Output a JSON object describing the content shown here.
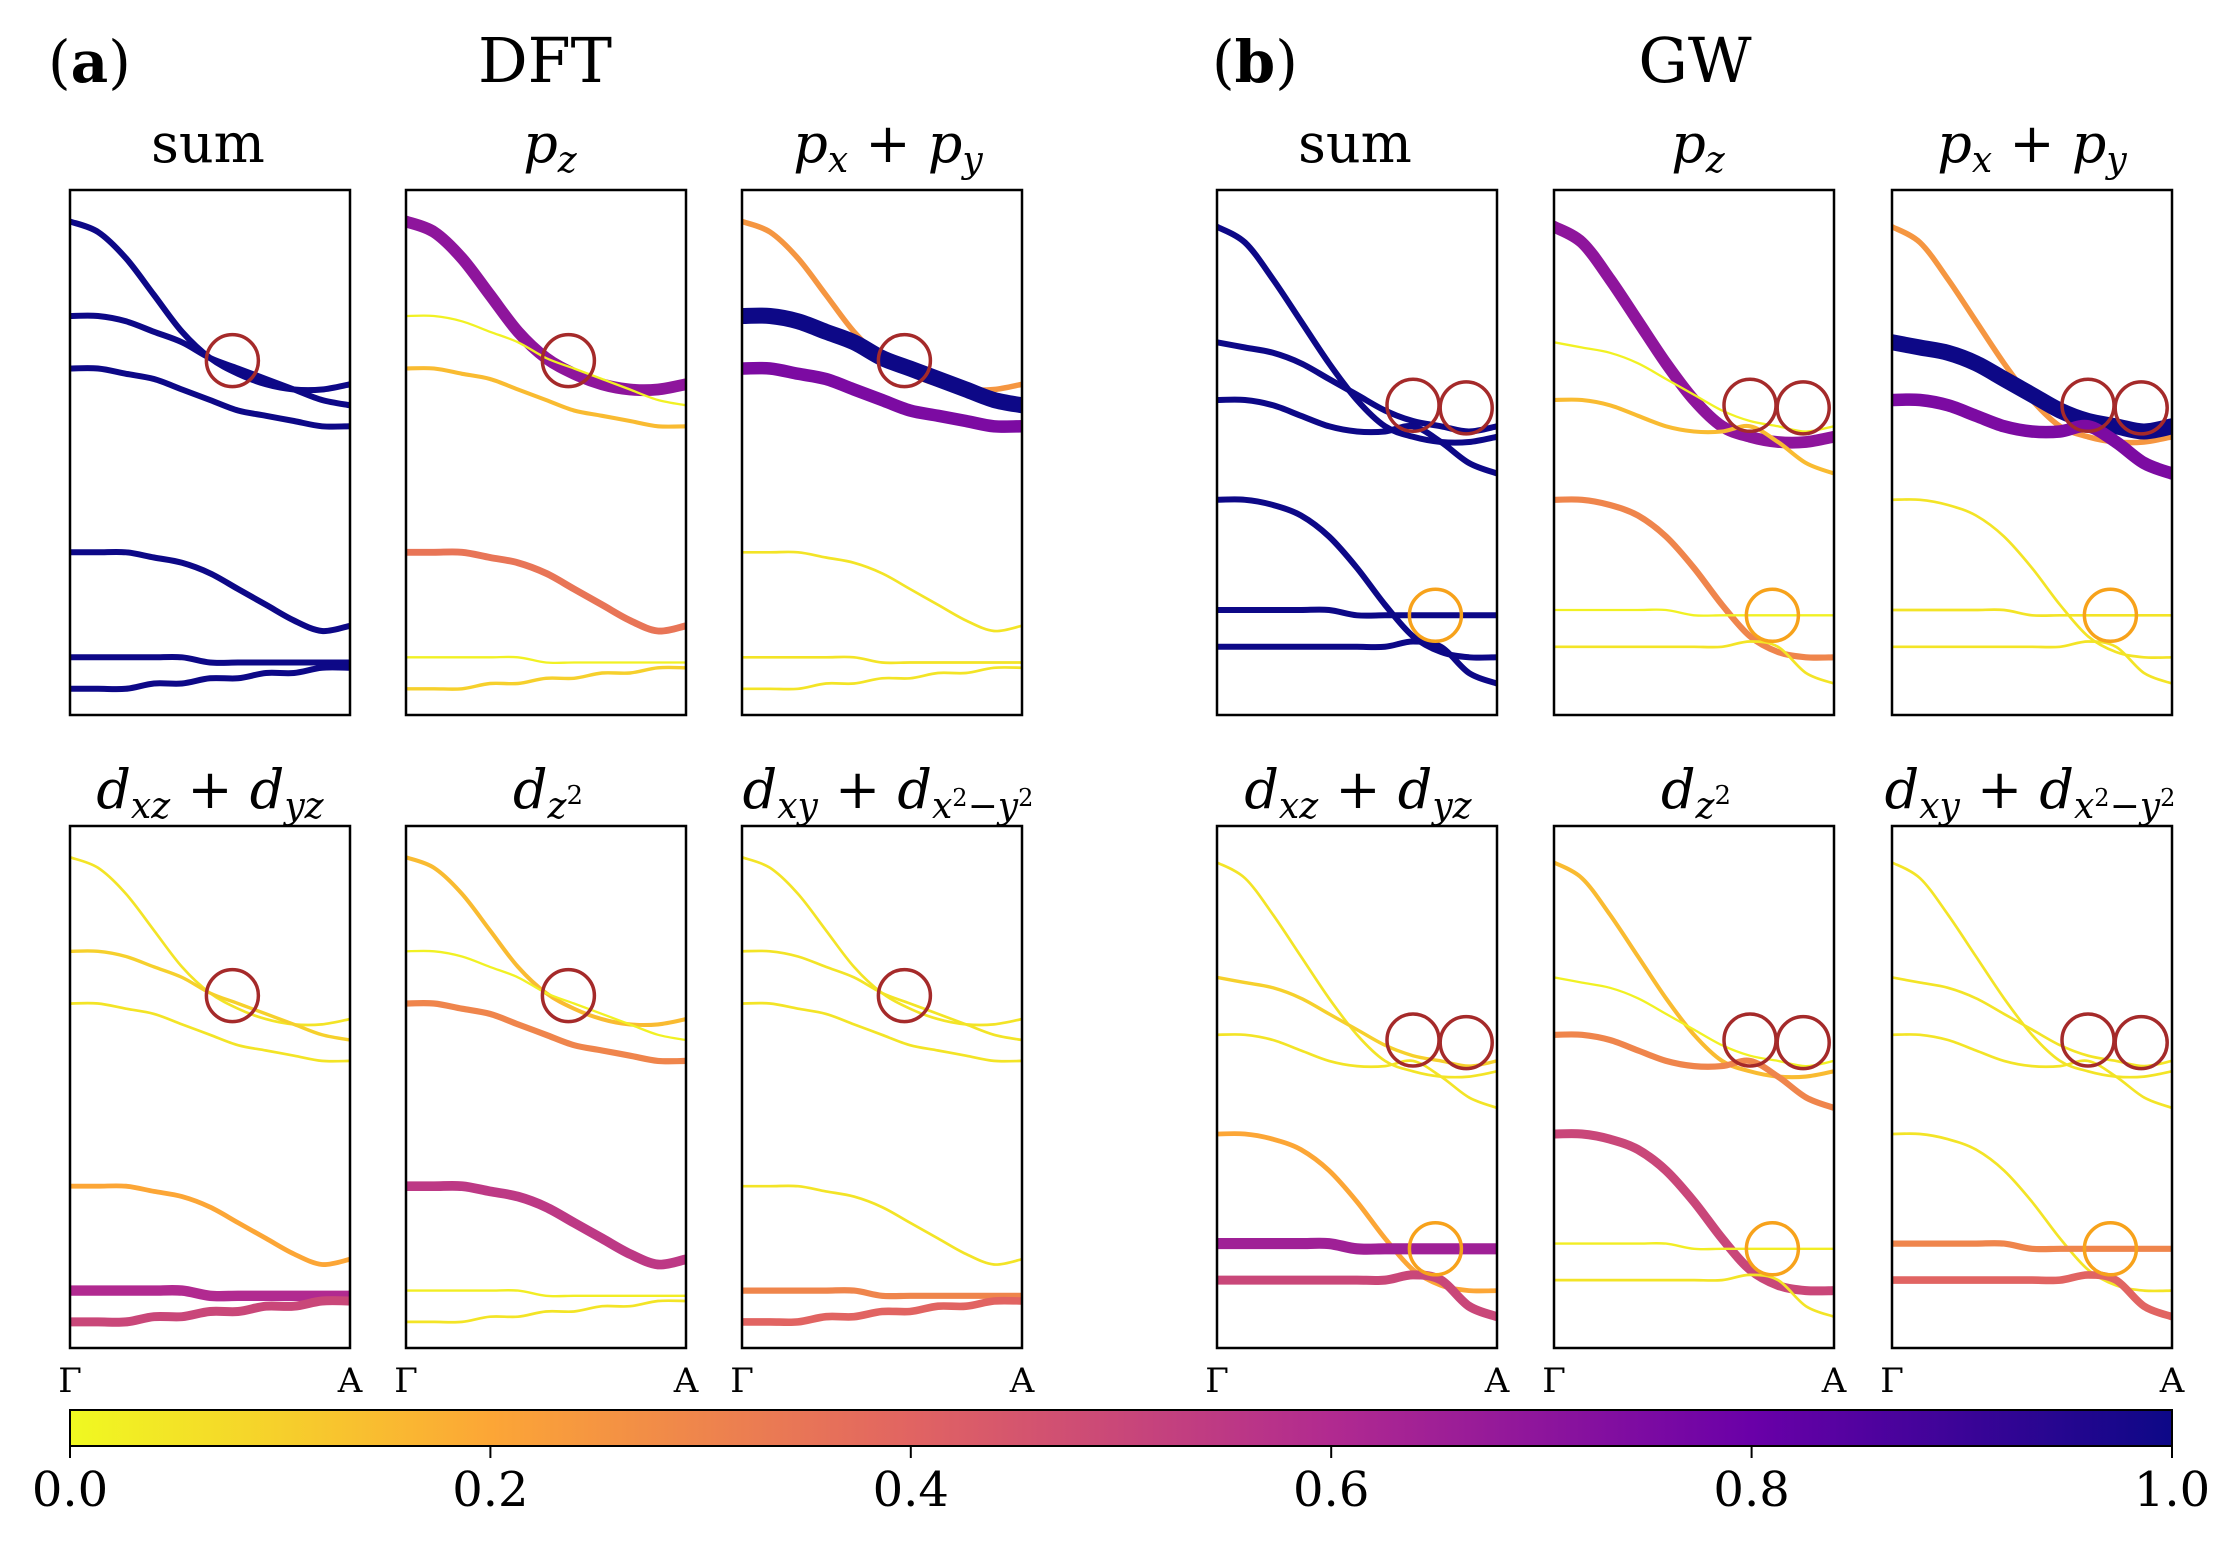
{
  "figure": {
    "panel_a": {
      "paren_open": "(",
      "letter": "a",
      "paren_close": ")",
      "title": "DFT"
    },
    "panel_b": {
      "paren_open": "(",
      "letter": "b",
      "paren_close": ")",
      "title": "GW"
    }
  },
  "subplot_titles": {
    "sum": "sum",
    "pz": {
      "base": "p",
      "sub": "z"
    },
    "pxpy": {
      "b1": "p",
      "s1": "x",
      "op": " + ",
      "b2": "p",
      "s2": "y"
    },
    "dxzdyz": {
      "b1": "d",
      "s1": "xz",
      "op": " + ",
      "b2": "d",
      "s2": "yz"
    },
    "dz2": {
      "base": "d",
      "sub": "z",
      "sup": "2"
    },
    "dxydx2y2": {
      "b1": "d",
      "s1": "xy",
      "op": " + ",
      "b2": "d",
      "s2a": "x",
      "s2sup": "2",
      "s2b": "−y",
      "s2sup2": "2"
    }
  },
  "x_ticks": [
    "Γ",
    "A"
  ],
  "colorbar": {
    "ticks": [
      "0.0",
      "0.2",
      "0.4",
      "0.6",
      "0.8",
      "1.0"
    ],
    "colors": [
      "#f0f921",
      "#fca636",
      "#e16462",
      "#b12a90",
      "#6a00a8",
      "#0d0887"
    ]
  },
  "chart_data": {
    "type": "line",
    "description": "Orbital-projected band structures along Gamma-A; weight 0..1 shown as color (plasma) and line width",
    "x": [
      0,
      0.1,
      0.2,
      0.3,
      0.4,
      0.5,
      0.6,
      0.7,
      0.8,
      0.9,
      1.0
    ],
    "xlim": [
      0,
      1
    ],
    "ylim": [
      0,
      1
    ],
    "panels": {
      "DFT": {
        "bands": [
          [
            0.94,
            0.92,
            0.87,
            0.8,
            0.73,
            0.68,
            0.65,
            0.63,
            0.62,
            0.62,
            0.63
          ],
          [
            0.76,
            0.76,
            0.75,
            0.73,
            0.71,
            0.68,
            0.66,
            0.64,
            0.62,
            0.6,
            0.59
          ],
          [
            0.66,
            0.66,
            0.65,
            0.64,
            0.62,
            0.6,
            0.58,
            0.57,
            0.56,
            0.55,
            0.55
          ],
          [
            0.31,
            0.31,
            0.31,
            0.3,
            0.29,
            0.27,
            0.24,
            0.21,
            0.18,
            0.16,
            0.17
          ],
          [
            0.11,
            0.11,
            0.11,
            0.11,
            0.11,
            0.1,
            0.1,
            0.1,
            0.1,
            0.1,
            0.1
          ],
          [
            0.05,
            0.05,
            0.05,
            0.06,
            0.06,
            0.07,
            0.07,
            0.08,
            0.08,
            0.09,
            0.09
          ]
        ],
        "weights": {
          "sum": [
            1,
            1,
            1,
            1,
            1,
            1
          ],
          "pz": [
            0.7,
            0.02,
            0.15,
            0.35,
            0.02,
            0.1
          ],
          "pxpy": [
            0.25,
            1.0,
            0.75,
            0.05,
            0.05,
            0.05
          ],
          "dxzdyz": [
            0.05,
            0.1,
            0.05,
            0.2,
            0.6,
            0.5
          ],
          "dz2": [
            0.15,
            0.02,
            0.3,
            0.55,
            0.03,
            0.05
          ],
          "dxydx2y2": [
            0.05,
            0.05,
            0.05,
            0.05,
            0.3,
            0.4
          ]
        },
        "crossings": [
          [
            0.58,
            0.675
          ]
        ]
      },
      "GW": {
        "bands": [
          [
            0.93,
            0.9,
            0.83,
            0.75,
            0.67,
            0.6,
            0.55,
            0.53,
            0.52,
            0.52,
            0.53
          ],
          [
            0.71,
            0.7,
            0.69,
            0.67,
            0.64,
            0.61,
            0.58,
            0.56,
            0.55,
            0.54,
            0.55
          ],
          [
            0.6,
            0.6,
            0.59,
            0.57,
            0.55,
            0.54,
            0.54,
            0.55,
            0.52,
            0.48,
            0.46
          ],
          [
            0.41,
            0.41,
            0.4,
            0.38,
            0.34,
            0.28,
            0.21,
            0.15,
            0.12,
            0.11,
            0.11
          ],
          [
            0.2,
            0.2,
            0.2,
            0.2,
            0.2,
            0.19,
            0.19,
            0.19,
            0.19,
            0.19,
            0.19
          ],
          [
            0.13,
            0.13,
            0.13,
            0.13,
            0.13,
            0.13,
            0.13,
            0.14,
            0.13,
            0.08,
            0.06
          ]
        ],
        "weights": {
          "sum": [
            1,
            1,
            1,
            1,
            1,
            1
          ],
          "pz": [
            0.7,
            0.02,
            0.15,
            0.3,
            0.02,
            0.05
          ],
          "pxpy": [
            0.25,
            1.0,
            0.75,
            0.05,
            0.05,
            0.05
          ],
          "dxzdyz": [
            0.05,
            0.1,
            0.05,
            0.2,
            0.65,
            0.5
          ],
          "dz2": [
            0.15,
            0.02,
            0.3,
            0.5,
            0.03,
            0.05
          ],
          "dxydx2y2": [
            0.05,
            0.05,
            0.05,
            0.05,
            0.3,
            0.4
          ]
        },
        "crossings": [
          [
            0.7,
            0.59
          ],
          [
            0.89,
            0.585
          ],
          [
            0.78,
            0.19
          ]
        ]
      }
    },
    "colorbar_range": [
      0.0,
      1.0
    ],
    "colormap": "plasma"
  }
}
